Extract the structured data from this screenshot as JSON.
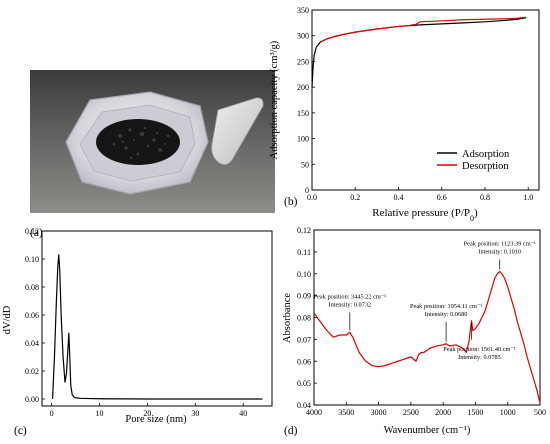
{
  "panels": {
    "a": {
      "label": "(a)"
    },
    "b": {
      "label": "(b)"
    },
    "c": {
      "label": "(c)"
    },
    "d": {
      "label": "(d)"
    }
  },
  "chart_data": [
    {
      "panel": "b",
      "type": "line",
      "xlabel": "Relative pressure (P/P",
      "xlabel_sub": "0",
      "xlabel_tail": ")",
      "ylabel": "Adsorption capacity (cm³/g)",
      "xlim": [
        0,
        1.05
      ],
      "ylim": [
        0,
        350
      ],
      "xticks": [
        0.0,
        0.2,
        0.4,
        0.6,
        0.8,
        1.0
      ],
      "xtick_labels": [
        "0.0",
        "0.2",
        "0.4",
        "0.6",
        "0.8",
        "1.0"
      ],
      "yticks": [
        0,
        50,
        100,
        150,
        200,
        250,
        300,
        350
      ],
      "ytick_labels": [
        "0",
        "50",
        "100",
        "150",
        "200",
        "250",
        "300",
        "350"
      ],
      "legend_position": "bottom-right",
      "series": [
        {
          "name": "Adsorption",
          "color": "#000000",
          "x": [
            0.0,
            0.005,
            0.01,
            0.02,
            0.04,
            0.07,
            0.1,
            0.15,
            0.2,
            0.3,
            0.4,
            0.5,
            0.6,
            0.7,
            0.8,
            0.9,
            0.95,
            0.99
          ],
          "y": [
            200,
            240,
            262,
            278,
            288,
            294,
            298,
            303,
            307,
            313,
            318,
            321,
            323,
            325,
            327,
            330,
            332,
            335
          ]
        },
        {
          "name": "Desorption",
          "color": "#e00000",
          "x": [
            0.99,
            0.95,
            0.9,
            0.8,
            0.7,
            0.6,
            0.5,
            0.48,
            0.45,
            0.4,
            0.3,
            0.2,
            0.15,
            0.1,
            0.07,
            0.04
          ],
          "y": [
            336,
            334,
            333,
            332,
            331,
            329,
            327,
            322,
            320,
            318,
            313,
            307,
            303,
            298,
            294,
            288
          ]
        }
      ]
    },
    {
      "panel": "c",
      "type": "line",
      "xlabel": "Pore size (nm)",
      "ylabel": "dV/dD",
      "xlim": [
        -2,
        46
      ],
      "ylim": [
        -0.005,
        0.12
      ],
      "xticks": [
        0,
        10,
        20,
        30,
        40
      ],
      "xtick_labels": [
        "0",
        "10",
        "20",
        "30",
        "40"
      ],
      "yticks": [
        0.0,
        0.02,
        0.04,
        0.06,
        0.08,
        0.1,
        0.12
      ],
      "ytick_labels": [
        "0.00",
        "0.02",
        "0.04",
        "0.06",
        "0.08",
        "0.10",
        "0.12"
      ],
      "series": [
        {
          "color": "#000000",
          "x": [
            0.2,
            0.6,
            1.0,
            1.3,
            1.5,
            1.7,
            2.0,
            2.4,
            2.8,
            3.1,
            3.4,
            3.6,
            3.8,
            4.0,
            4.3,
            4.8,
            6,
            8,
            10,
            15,
            20,
            30,
            40,
            44
          ],
          "y": [
            0.0,
            0.03,
            0.07,
            0.095,
            0.103,
            0.092,
            0.06,
            0.03,
            0.012,
            0.018,
            0.035,
            0.047,
            0.03,
            0.01,
            0.003,
            0.001,
            0.0005,
            0.0003,
            0.0002,
            0.0001,
            0.0,
            0.0,
            0.0,
            0.0
          ]
        }
      ]
    },
    {
      "panel": "d",
      "type": "line",
      "xlabel": "Wavenumber (cm⁻¹)",
      "ylabel": "Absorbance",
      "xlim": [
        4000,
        500
      ],
      "ylim": [
        0.04,
        0.12
      ],
      "xticks": [
        4000,
        3500,
        3000,
        2500,
        2000,
        1500,
        1000,
        500
      ],
      "xtick_labels": [
        "4000",
        "3500",
        "3000",
        "2500",
        "2000",
        "1500",
        "1000",
        "500"
      ],
      "yticks": [
        0.04,
        0.05,
        0.06,
        0.07,
        0.08,
        0.09,
        0.1,
        0.11,
        0.12
      ],
      "ytick_labels": [
        "0.04",
        "0.05",
        "0.06",
        "0.07",
        "0.08",
        "0.09",
        "0.10",
        "0.11",
        "0.12"
      ],
      "series": [
        {
          "color": "#e00000",
          "x": [
            4000,
            3900,
            3800,
            3700,
            3600,
            3500,
            3445,
            3400,
            3300,
            3200,
            3100,
            3000,
            2900,
            2800,
            2700,
            2600,
            2500,
            2420,
            2380,
            2340,
            2300,
            2200,
            2100,
            2000,
            1954,
            1900,
            1800,
            1700,
            1640,
            1600,
            1580,
            1561,
            1540,
            1500,
            1450,
            1400,
            1350,
            1300,
            1250,
            1200,
            1160,
            1123,
            1090,
            1050,
            1000,
            950,
            900,
            850,
            800,
            750,
            700,
            650,
            600,
            550,
            500
          ],
          "y": [
            0.082,
            0.078,
            0.074,
            0.071,
            0.072,
            0.072,
            0.0732,
            0.071,
            0.064,
            0.06,
            0.058,
            0.0575,
            0.058,
            0.059,
            0.06,
            0.061,
            0.062,
            0.06,
            0.063,
            0.064,
            0.064,
            0.066,
            0.067,
            0.0675,
            0.068,
            0.067,
            0.0675,
            0.066,
            0.064,
            0.069,
            0.074,
            0.0785,
            0.074,
            0.075,
            0.077,
            0.08,
            0.083,
            0.088,
            0.093,
            0.098,
            0.1,
            0.101,
            0.1,
            0.098,
            0.094,
            0.089,
            0.084,
            0.078,
            0.073,
            0.068,
            0.062,
            0.057,
            0.052,
            0.047,
            0.041
          ]
        }
      ],
      "annotations": [
        {
          "line1": "Peak position: 3445.22 cm⁻¹",
          "line2": "Intensity: 0.0732",
          "x": 3445.22,
          "y": 0.0732
        },
        {
          "line1": "Peak position: 1954.11 cm⁻¹",
          "line2": "Intensity: 0.0680",
          "x": 1954.11,
          "y": 0.068
        },
        {
          "line1": "Peak position: 1561.40 cm⁻¹",
          "line2": "Intensity: 0.0785",
          "x": 1561.4,
          "y": 0.0785
        },
        {
          "line1": "Peak position: 1123.39 cm⁻¹",
          "line2": "Intensity: 0.1010",
          "x": 1123.39,
          "y": 0.101
        }
      ]
    }
  ]
}
